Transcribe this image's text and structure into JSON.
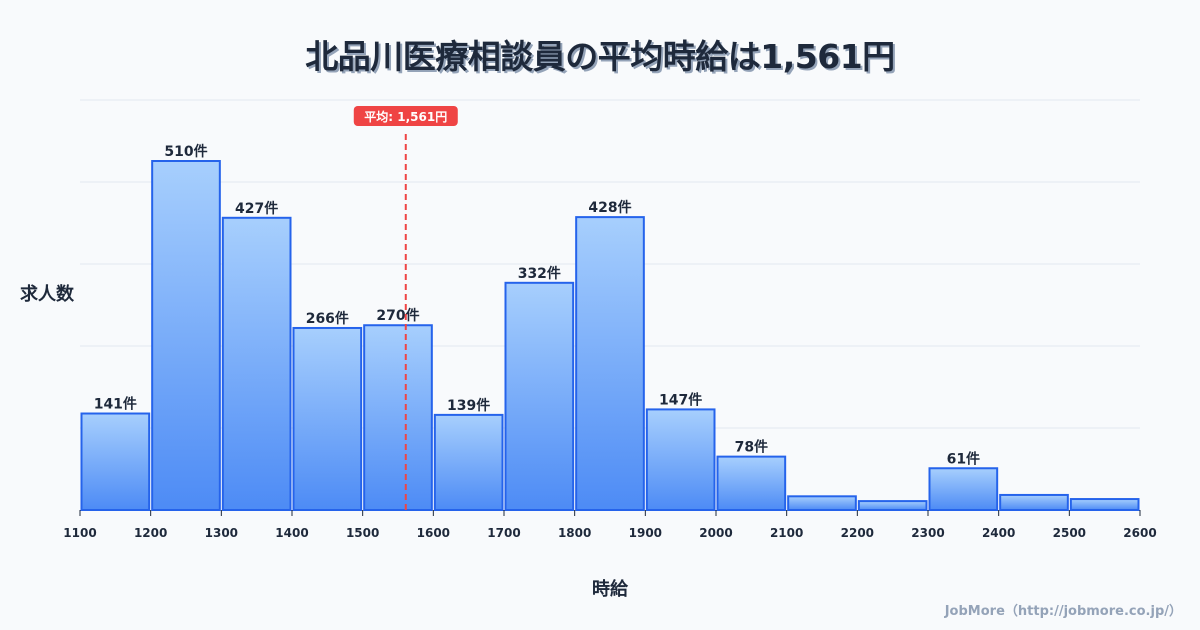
{
  "title": "北品川医療相談員の平均時給は1,561円",
  "ylabel": "求人数",
  "xlabel": "時給",
  "credit": "JobMore（http://jobmore.co.jp/）",
  "mean_label": "平均: 1,561円",
  "colors": {
    "bar_top": "#a7cffd",
    "bar_bottom": "#4d8bf5",
    "bar_border": "#2563eb",
    "mean_line": "#ef4444",
    "grid": "#e2e8f0",
    "text": "#1e293b"
  },
  "chart_data": {
    "type": "bar",
    "title": "北品川医療相談員の平均時給は1,561円",
    "xlabel": "時給",
    "ylabel": "求人数",
    "bin_edges": [
      1100,
      1200,
      1300,
      1400,
      1500,
      1600,
      1700,
      1800,
      1900,
      2000,
      2100,
      2200,
      2300,
      2400,
      2500,
      2600
    ],
    "categories": [
      "1100-1200",
      "1200-1300",
      "1300-1400",
      "1400-1500",
      "1500-1600",
      "1600-1700",
      "1700-1800",
      "1800-1900",
      "1900-2000",
      "2000-2100",
      "2100-2200",
      "2200-2300",
      "2300-2400",
      "2400-2500",
      "2500-2600"
    ],
    "values": [
      141,
      510,
      427,
      266,
      270,
      139,
      332,
      428,
      147,
      78,
      20,
      13,
      61,
      22,
      16
    ],
    "labels": [
      "141件",
      "510件",
      "427件",
      "266件",
      "270件",
      "139件",
      "332件",
      "428件",
      "147件",
      "78件",
      "",
      "",
      "61件",
      "",
      ""
    ],
    "x_ticks": [
      "1100",
      "1200",
      "1300",
      "1400",
      "1500",
      "1600",
      "1700",
      "1800",
      "1900",
      "2000",
      "2100",
      "2200",
      "2300",
      "2400",
      "2500",
      "2600"
    ],
    "mean": 1561,
    "mean_annotation": "平均: 1,561円",
    "xlim": [
      1100,
      2600
    ],
    "ylim": [
      0,
      600
    ],
    "grid": true,
    "legend": "none"
  }
}
